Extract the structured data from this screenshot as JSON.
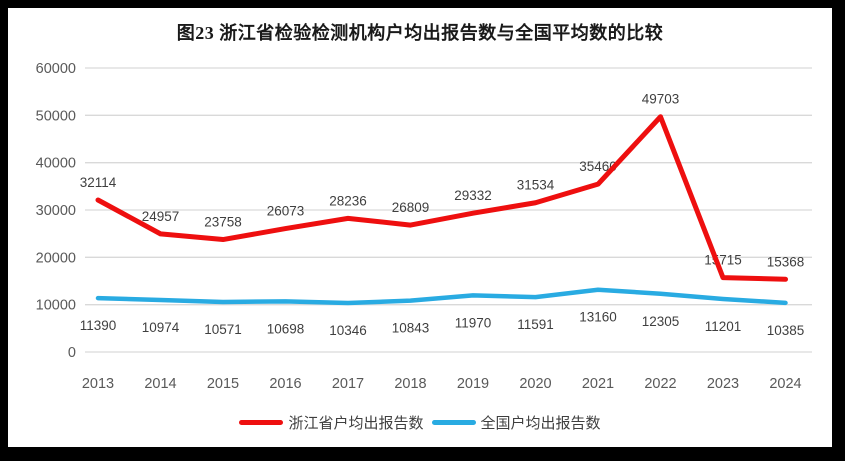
{
  "chart_data": {
    "type": "line",
    "title": "图23  浙江省检验检测机构户均出报告数与全国平均数的比较",
    "categories": [
      "2013",
      "2014",
      "2015",
      "2016",
      "2017",
      "2018",
      "2019",
      "2020",
      "2021",
      "2022",
      "2023",
      "2024"
    ],
    "series": [
      {
        "name": "浙江省户均出报告数",
        "color": "#ee0f0f",
        "values": [
          32114,
          24957,
          23758,
          26073,
          28236,
          26809,
          29332,
          31534,
          35460,
          49703,
          15715,
          15368
        ]
      },
      {
        "name": "全国户均出报告数",
        "color": "#29abe2",
        "values": [
          11390,
          10974,
          10571,
          10698,
          10346,
          10843,
          11970,
          11591,
          13160,
          12305,
          11201,
          10385
        ]
      }
    ],
    "xlabel": "",
    "ylabel": "",
    "ylim": [
      0,
      60000
    ],
    "yticks": [
      0,
      10000,
      20000,
      30000,
      40000,
      50000,
      60000
    ],
    "grid": true,
    "gridline_color": "#d9d9d9",
    "data_labels": true,
    "legend_position": "bottom",
    "frame_color": "#000000"
  }
}
